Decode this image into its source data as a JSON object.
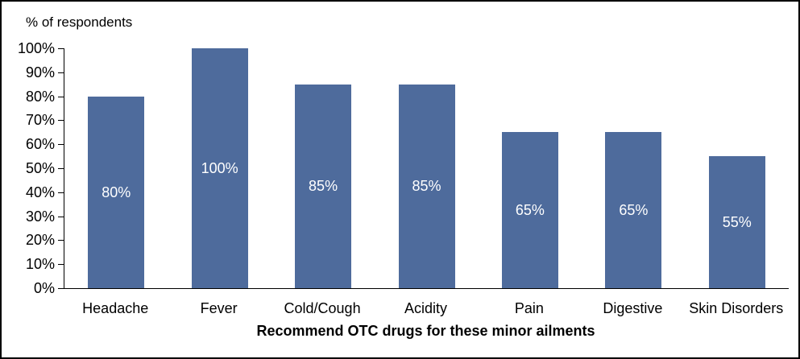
{
  "chart_data": {
    "type": "bar",
    "title": "",
    "y_axis_title": "% of respondents",
    "x_axis_title": "Recommend OTC drugs for these minor ailments",
    "categories": [
      "Headache",
      "Fever",
      "Cold/Cough",
      "Acidity",
      "Pain",
      "Digestive",
      "Skin Disorders"
    ],
    "values": [
      80,
      100,
      85,
      85,
      65,
      65,
      55
    ],
    "value_labels": [
      "80%",
      "100%",
      "85%",
      "85%",
      "65%",
      "65%",
      "55%"
    ],
    "y_ticks": [
      "0%",
      "10%",
      "20%",
      "30%",
      "40%",
      "50%",
      "60%",
      "70%",
      "80%",
      "90%",
      "100%"
    ],
    "ylim": [
      0,
      100
    ],
    "grid": false,
    "legend": false,
    "colors": {
      "bar_fill": "#4E6B9C",
      "bar_value_text": "#FFFFFF",
      "axis_line": "#000000",
      "text": "#000000",
      "background": "#FFFFFF",
      "frame_border": "#000000"
    }
  }
}
